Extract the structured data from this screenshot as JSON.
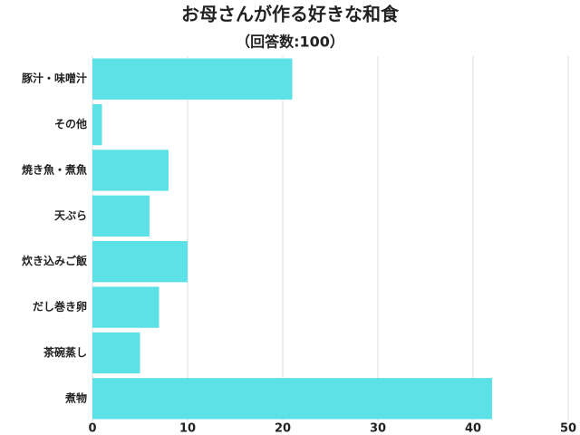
{
  "chart_data": {
    "type": "bar",
    "orientation": "horizontal",
    "title": "お母さんが作る好きな和食",
    "subtitle": "（回答数:100）",
    "categories": [
      "豚汁・味噌汁",
      "その他",
      "焼き魚・煮魚",
      "天ぷら",
      "炊き込みご飯",
      "だし巻き卵",
      "茶碗蒸し",
      "煮物"
    ],
    "values": [
      21,
      1,
      8,
      6,
      10,
      7,
      5,
      42
    ],
    "color": "#5ce1e6",
    "xlim": [
      0,
      50
    ],
    "xticks": [
      0,
      10,
      20,
      30,
      40,
      50
    ],
    "grid": true
  }
}
